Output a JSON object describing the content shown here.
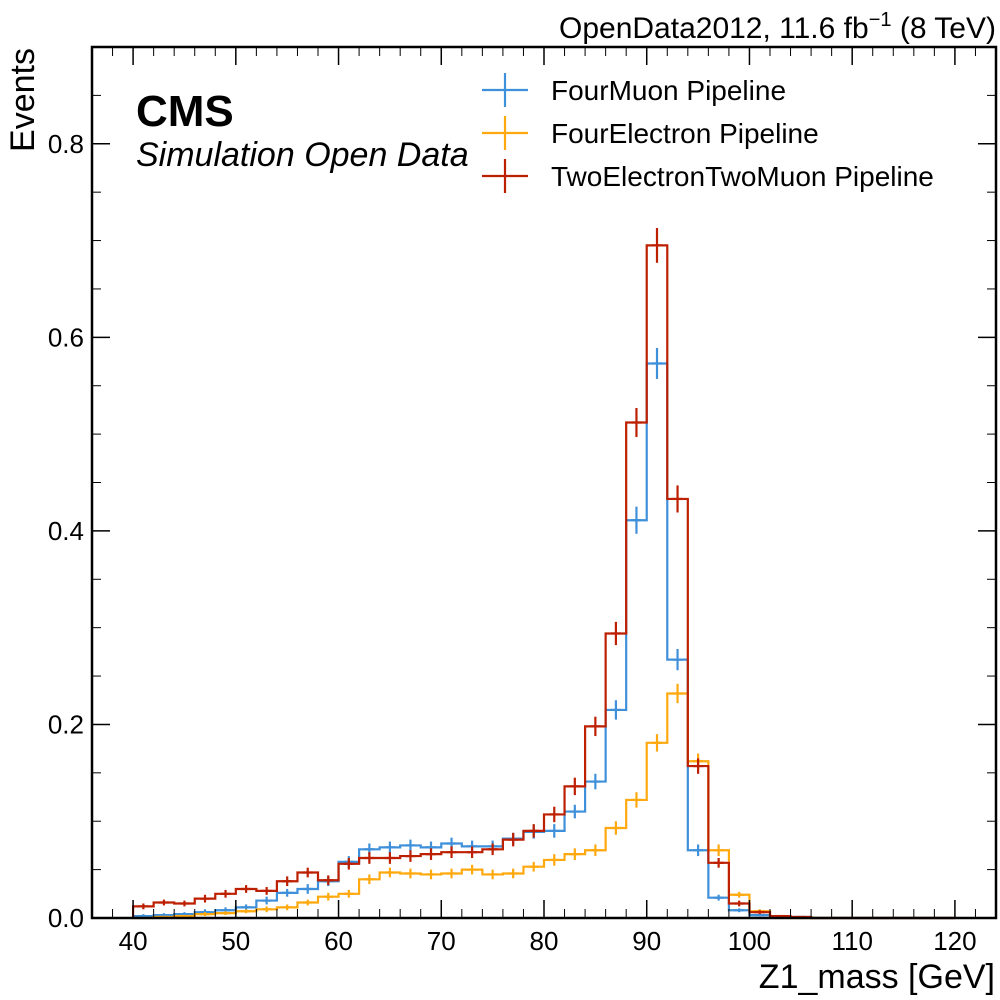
{
  "header": {
    "lumi_main": "OpenData2012, 11.6 fb",
    "lumi_sup": "−1",
    "lumi_tail": " (8 TeV)"
  },
  "experiment": {
    "label": "CMS",
    "sublabel": "Simulation Open Data"
  },
  "chart_data": {
    "type": "line",
    "style": "step histogram with error bars",
    "xlabel": "Z1_mass [GeV]",
    "ylabel": "Events",
    "xlim": [
      36,
      124
    ],
    "ylim": [
      0,
      0.9
    ],
    "xticks": [
      40,
      50,
      60,
      70,
      80,
      90,
      100,
      110,
      120
    ],
    "xtick_labels": [
      "40",
      "50",
      "60",
      "70",
      "80",
      "90",
      "100",
      "110",
      "120"
    ],
    "yticks": [
      0,
      0.2,
      0.4,
      0.6,
      0.8
    ],
    "ytick_labels": [
      "0.0",
      "0.2",
      "0.4",
      "0.6",
      "0.8"
    ],
    "legend_position": "top-right",
    "bin_edges": [
      40,
      42,
      44,
      46,
      48,
      50,
      52,
      54,
      56,
      58,
      60,
      62,
      64,
      66,
      68,
      70,
      72,
      74,
      76,
      78,
      80,
      82,
      84,
      86,
      88,
      90,
      92,
      94,
      96,
      98,
      100,
      102,
      104,
      106,
      108,
      110,
      112,
      114,
      116,
      118,
      120
    ],
    "series": [
      {
        "name": "FourMuon Pipeline",
        "color": "#3f90da",
        "values": [
          0.002,
          0.003,
          0.004,
          0.006,
          0.008,
          0.011,
          0.018,
          0.026,
          0.03,
          0.038,
          0.058,
          0.071,
          0.073,
          0.075,
          0.073,
          0.077,
          0.074,
          0.074,
          0.082,
          0.089,
          0.09,
          0.11,
          0.141,
          0.215,
          0.411,
          0.573,
          0.267,
          0.07,
          0.021,
          0.008,
          0.003,
          0.001,
          0.001,
          0,
          0,
          0,
          0,
          0,
          0,
          0
        ],
        "errors": [
          0.002,
          0.002,
          0.002,
          0.003,
          0.003,
          0.003,
          0.004,
          0.004,
          0.005,
          0.005,
          0.006,
          0.006,
          0.006,
          0.006,
          0.006,
          0.006,
          0.006,
          0.006,
          0.006,
          0.007,
          0.007,
          0.007,
          0.008,
          0.01,
          0.014,
          0.016,
          0.011,
          0.006,
          0.003,
          0.002,
          0.001,
          0.001,
          0.001,
          0,
          0,
          0,
          0,
          0,
          0,
          0
        ]
      },
      {
        "name": "FourElectron Pipeline",
        "color": "#ffa90e",
        "values": [
          0,
          0.001,
          0.002,
          0.004,
          0.005,
          0.007,
          0.009,
          0.011,
          0.016,
          0.022,
          0.025,
          0.04,
          0.047,
          0.046,
          0.045,
          0.046,
          0.05,
          0.045,
          0.046,
          0.053,
          0.06,
          0.066,
          0.07,
          0.093,
          0.122,
          0.181,
          0.232,
          0.162,
          0.07,
          0.024,
          0.007,
          0.002,
          0,
          0,
          0,
          0,
          0,
          0,
          0,
          0
        ],
        "errors": [
          0,
          0.001,
          0.001,
          0.002,
          0.002,
          0.002,
          0.003,
          0.003,
          0.003,
          0.004,
          0.004,
          0.005,
          0.005,
          0.005,
          0.005,
          0.005,
          0.005,
          0.005,
          0.005,
          0.005,
          0.006,
          0.006,
          0.006,
          0.007,
          0.008,
          0.009,
          0.01,
          0.008,
          0.006,
          0.003,
          0.002,
          0.001,
          0,
          0,
          0,
          0,
          0,
          0,
          0,
          0
        ]
      },
      {
        "name": "TwoElectronTwoMuon Pipeline",
        "color": "#bd1f01",
        "values": [
          0.012,
          0.016,
          0.015,
          0.02,
          0.025,
          0.03,
          0.028,
          0.038,
          0.047,
          0.039,
          0.056,
          0.062,
          0.062,
          0.064,
          0.066,
          0.068,
          0.068,
          0.071,
          0.081,
          0.09,
          0.107,
          0.136,
          0.198,
          0.294,
          0.512,
          0.695,
          0.433,
          0.157,
          0.057,
          0.015,
          0.006,
          0.002,
          0.001,
          0,
          0,
          0,
          0,
          0,
          0,
          0
        ],
        "errors": [
          0.003,
          0.003,
          0.003,
          0.004,
          0.004,
          0.004,
          0.004,
          0.005,
          0.005,
          0.005,
          0.006,
          0.006,
          0.006,
          0.006,
          0.006,
          0.006,
          0.006,
          0.006,
          0.007,
          0.007,
          0.008,
          0.009,
          0.01,
          0.012,
          0.015,
          0.018,
          0.014,
          0.008,
          0.005,
          0.003,
          0.002,
          0.001,
          0.001,
          0,
          0,
          0,
          0,
          0,
          0,
          0
        ]
      }
    ]
  }
}
